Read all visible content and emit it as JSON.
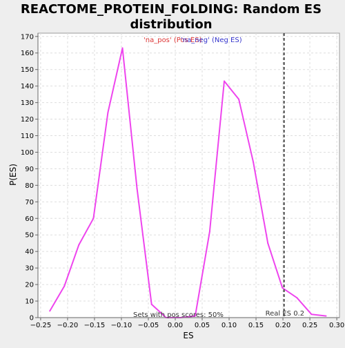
{
  "chart_data": {
    "type": "line",
    "title_line1": "REACTOME_PROTEIN_FOLDING: Random ES",
    "title_line2": "distribution",
    "xlabel": "ES",
    "ylabel": "P(ES)",
    "xlim": [
      -0.255,
      0.305
    ],
    "ylim": [
      0,
      172
    ],
    "x_ticks": [
      -0.25,
      -0.2,
      -0.15,
      -0.1,
      -0.05,
      0.0,
      0.05,
      0.1,
      0.15,
      0.2,
      0.25,
      0.3
    ],
    "x_tick_labels": [
      "−0.25",
      "−0.20",
      "−0.15",
      "−0.10",
      "−0.05",
      "0.00",
      "0.05",
      "0.10",
      "0.15",
      "0.20",
      "0.25",
      "0.30"
    ],
    "y_ticks": [
      0,
      10,
      20,
      30,
      40,
      50,
      60,
      70,
      80,
      90,
      100,
      110,
      120,
      130,
      140,
      150,
      160,
      170
    ],
    "grid": true,
    "legend": {
      "position": "top-center",
      "entries": [
        {
          "label": "'na_pos' (Pos ES)",
          "color": "#dd3333"
        },
        {
          "label": "'na_neg' (Neg ES)",
          "color": "#3333cc"
        }
      ]
    },
    "series": [
      {
        "color": "#ee44ee",
        "x": [
          -0.233,
          -0.206,
          -0.179,
          -0.152,
          -0.125,
          -0.098,
          -0.071,
          -0.044,
          -0.017,
          0.01,
          0.037,
          0.064,
          0.091,
          0.118,
          0.145,
          0.172,
          0.199,
          0.226,
          0.253,
          0.28
        ],
        "y": [
          4,
          19,
          44,
          60,
          124,
          163,
          78,
          8,
          0,
          0,
          1,
          52,
          143,
          132,
          94,
          45,
          18,
          12,
          2,
          1
        ]
      }
    ],
    "vline": {
      "x": 0.202,
      "label": "Real ES 0.2",
      "color": "#444444"
    },
    "annotation": "Sets with pos scores: 50%"
  }
}
